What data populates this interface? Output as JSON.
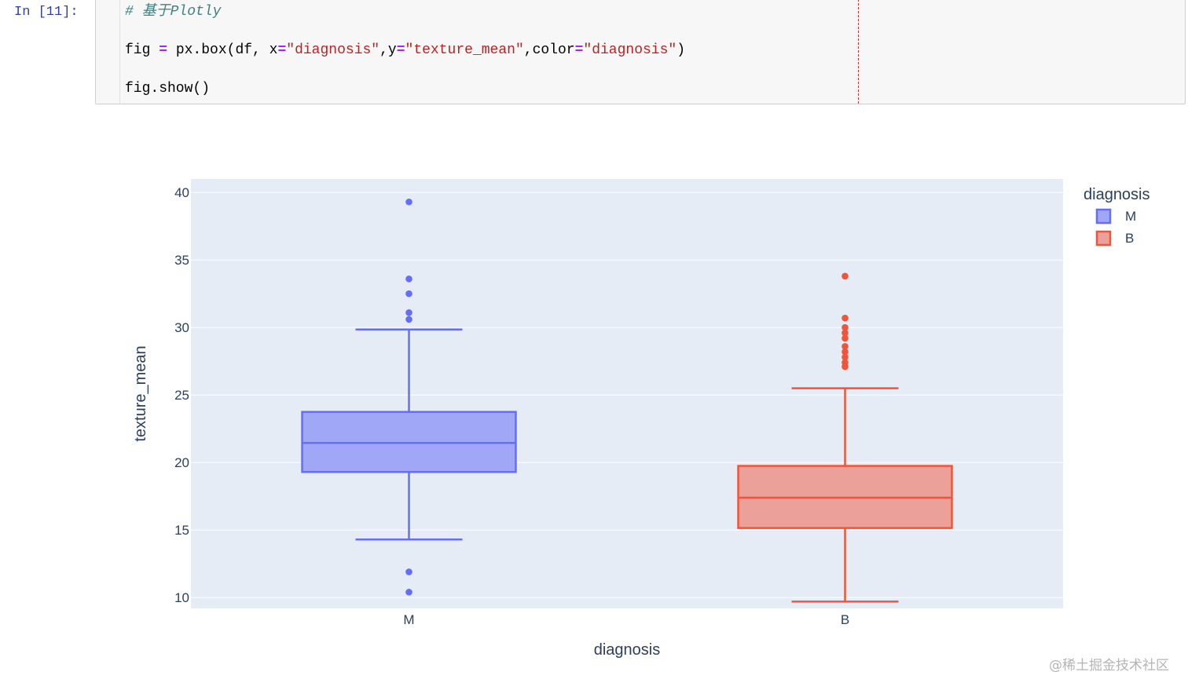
{
  "cell": {
    "prompt": "In [11]:",
    "comment": "# 基于Plotly",
    "line2": {
      "p1": "fig ",
      "op1": "=",
      "p2": " px.box(df, x",
      "op2": "=",
      "s1": "\"diagnosis\"",
      "p3": ",y",
      "op3": "=",
      "s2": "\"texture_mean\"",
      "p4": ",color",
      "op4": "=",
      "s3": "\"diagnosis\"",
      "p5": ")"
    },
    "line3": "fig.show()"
  },
  "chart_data": {
    "type": "box",
    "xlabel": "diagnosis",
    "ylabel": "texture_mean",
    "ylim": [
      9.2,
      41.0
    ],
    "yticks": [
      10,
      15,
      20,
      25,
      30,
      35,
      40
    ],
    "categories": [
      "M",
      "B"
    ],
    "grid": true,
    "legend": {
      "title": "diagnosis",
      "placement": "top-right"
    },
    "series": [
      {
        "name": "M",
        "color": "#636efa",
        "fill": "#a1a7f7",
        "whisker_low": 14.3,
        "q1": 19.3,
        "median": 21.45,
        "q3": 23.75,
        "whisker_high": 29.85,
        "outliers": [
          39.3,
          33.6,
          32.5,
          31.1,
          30.6,
          11.9,
          10.4
        ]
      },
      {
        "name": "B",
        "color": "#ef553b",
        "fill": "#eba19a",
        "whisker_low": 9.7,
        "q1": 15.15,
        "median": 17.4,
        "q3": 19.75,
        "whisker_high": 25.5,
        "outliers": [
          33.8,
          30.7,
          30.0,
          29.6,
          29.2,
          28.6,
          28.2,
          27.8,
          27.4,
          27.1
        ]
      }
    ]
  },
  "watermark": "@稀土掘金技术社区"
}
